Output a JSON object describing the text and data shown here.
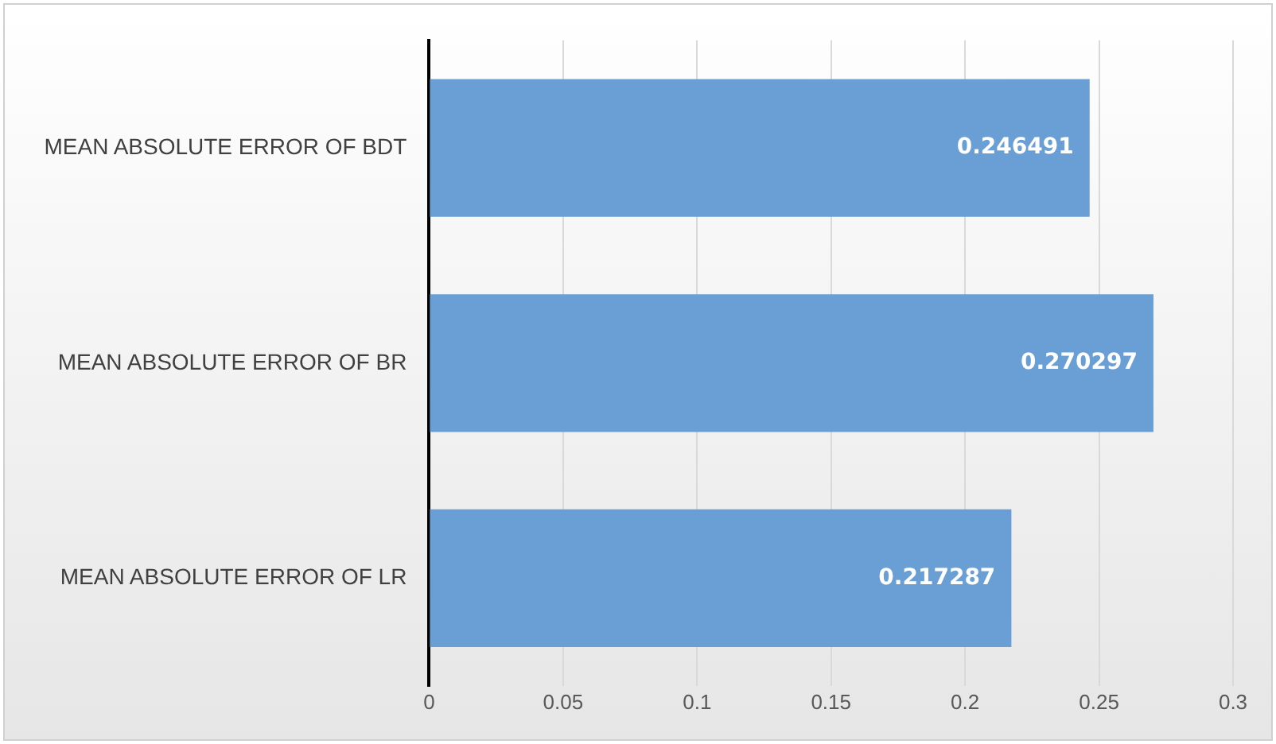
{
  "chart_data": {
    "type": "bar",
    "orientation": "horizontal",
    "categories": [
      "MEAN ABSOLUTE ERROR OF BDT",
      "MEAN ABSOLUTE ERROR OF BR",
      "MEAN ABSOLUTE ERROR OF LR"
    ],
    "values": [
      0.246491,
      0.270297,
      0.217287
    ],
    "color": "#6a9fd6",
    "xlim": [
      0,
      0.3
    ],
    "xticks": [
      0,
      0.05,
      0.1,
      0.15,
      0.2,
      0.25,
      0.3
    ],
    "grid": "x",
    "data_labels": true
  }
}
